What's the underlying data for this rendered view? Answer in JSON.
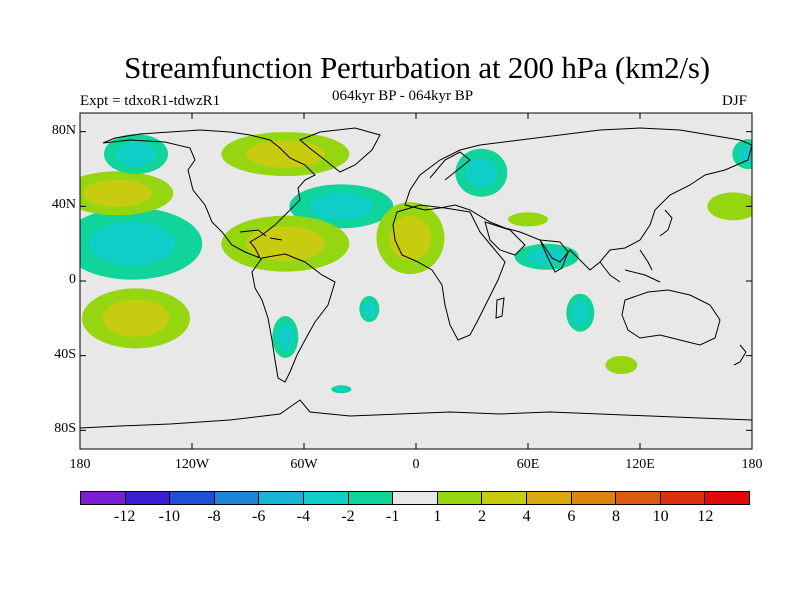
{
  "header": {
    "title": "Streamfunction Perturbation at 200 hPa (km2/s)",
    "expt": "Expt = tdxoR1-tdwzR1",
    "subtitle": "064kyr BP - 064kyr BP",
    "season": "DJF"
  },
  "map": {
    "projection": "cylindrical-equidistant",
    "lon_range": [
      -180,
      180
    ],
    "lat_range": [
      -90,
      90
    ],
    "lat_ticks": [
      "80N",
      "40N",
      "0",
      "40S",
      "80S"
    ],
    "lon_ticks": [
      "180",
      "120W",
      "60W",
      "0",
      "60E",
      "120E",
      "180"
    ],
    "background_color": "#e8e8e8",
    "anomalies": [
      {
        "lon": -152,
        "lat": 20,
        "value": -3
      },
      {
        "lon": -40,
        "lat": 40,
        "value": -3
      },
      {
        "lon": -70,
        "lat": 68,
        "value": 2
      },
      {
        "lon": -160,
        "lat": 47,
        "value": 2
      },
      {
        "lon": -150,
        "lat": -20,
        "value": 2
      },
      {
        "lon": -70,
        "lat": 20,
        "value": 2
      },
      {
        "lon": -3,
        "lat": 23,
        "value": 2
      },
      {
        "lon": 60,
        "lat": 33,
        "value": 1
      },
      {
        "lon": 170,
        "lat": 40,
        "value": 1
      },
      {
        "lon": 110,
        "lat": -45,
        "value": 1
      },
      {
        "lon": 35,
        "lat": 58,
        "value": -2
      },
      {
        "lon": 70,
        "lat": 13,
        "value": -2
      },
      {
        "lon": 88,
        "lat": -17,
        "value": -2
      },
      {
        "lon": -70,
        "lat": -30,
        "value": -2
      },
      {
        "lon": -25,
        "lat": -15,
        "value": -2
      },
      {
        "lon": -150,
        "lat": 68,
        "value": -2
      },
      {
        "lon": 178,
        "lat": 68,
        "value": -2
      },
      {
        "lon": -40,
        "lat": -58,
        "value": -2
      }
    ]
  },
  "colorbar": {
    "labels": [
      "-12",
      "-10",
      "-8",
      "-6",
      "-4",
      "-2",
      "-1",
      "1",
      "2",
      "4",
      "6",
      "8",
      "10",
      "12"
    ],
    "colors": [
      "#7b1fd6",
      "#3a1ed6",
      "#1e4fd6",
      "#1e86d6",
      "#18b4d6",
      "#10cfc8",
      "#10d49a",
      "#e8e8e8",
      "#96d610",
      "#c8cc10",
      "#d8a810",
      "#dc8410",
      "#dc5a10",
      "#dc3010",
      "#e00a0a"
    ]
  }
}
